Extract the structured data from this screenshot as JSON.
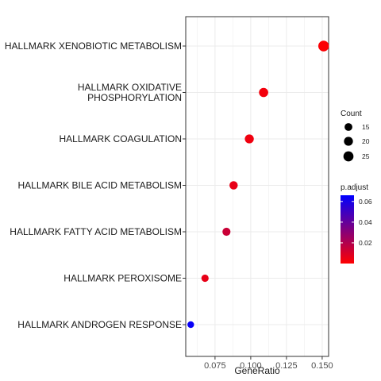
{
  "chart_data": {
    "type": "scatter",
    "xlabel": "GeneRatio",
    "ylabel": "",
    "title": "",
    "xlim": [
      0.0545,
      0.1545
    ],
    "x_ticks": [
      {
        "value": 0.075,
        "label": "0.075"
      },
      {
        "value": 0.1,
        "label": "0.100"
      },
      {
        "value": 0.125,
        "label": "0.125"
      },
      {
        "value": 0.15,
        "label": "0.150"
      }
    ],
    "grid": true,
    "points": [
      {
        "category": "HALLMARK XENOBIOTIC METABOLISM",
        "label_lines": [
          "HALLMARK XENOBIOTIC METABOLISM"
        ],
        "x": 0.151,
        "count": 28,
        "p_adjust": 0.001
      },
      {
        "category": "HALLMARK OXIDATIVE PHOSPHORYLATION",
        "label_lines": [
          "HALLMARK OXIDATIVE",
          "PHOSPHORYLATION"
        ],
        "x": 0.109,
        "count": 21,
        "p_adjust": 0.003
      },
      {
        "category": "HALLMARK COAGULATION",
        "label_lines": [
          "HALLMARK COAGULATION"
        ],
        "x": 0.099,
        "count": 20,
        "p_adjust": 0.004
      },
      {
        "category": "HALLMARK BILE ACID METABOLISM",
        "label_lines": [
          "HALLMARK BILE ACID METABOLISM"
        ],
        "x": 0.088,
        "count": 17,
        "p_adjust": 0.006
      },
      {
        "category": "HALLMARK FATTY ACID METABOLISM",
        "label_lines": [
          "HALLMARK FATTY ACID METABOLISM"
        ],
        "x": 0.083,
        "count": 16,
        "p_adjust": 0.014
      },
      {
        "category": "HALLMARK PEROXISOME",
        "label_lines": [
          "HALLMARK PEROXISOME"
        ],
        "x": 0.068,
        "count": 13,
        "p_adjust": 0.006
      },
      {
        "category": "HALLMARK ANDROGEN RESPONSE",
        "label_lines": [
          "HALLMARK ANDROGEN RESPONSE"
        ],
        "x": 0.058,
        "count": 11,
        "p_adjust": 0.064
      }
    ],
    "size_legend": {
      "title": "Count",
      "entries": [
        {
          "value": 15,
          "label": "15"
        },
        {
          "value": 20,
          "label": "20"
        },
        {
          "value": 25,
          "label": "25"
        }
      ]
    },
    "color_legend": {
      "title": "p.adjust",
      "range": [
        0.0,
        0.066
      ],
      "low_color": "#ff0000",
      "high_color": "#0000ff",
      "ticks": [
        {
          "value": 0.02,
          "label": "0.02"
        },
        {
          "value": 0.04,
          "label": "0.04"
        },
        {
          "value": 0.06,
          "label": "0.06"
        }
      ]
    }
  }
}
